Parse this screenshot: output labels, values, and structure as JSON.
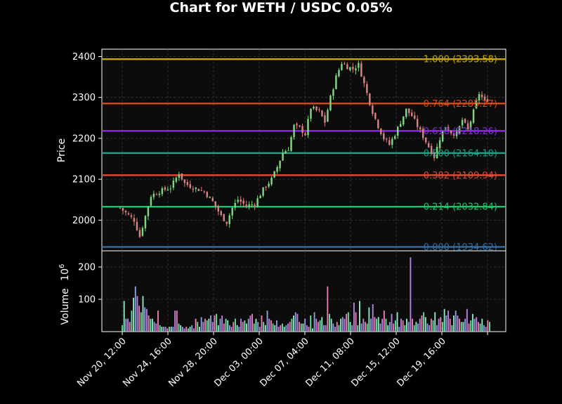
{
  "title": "Chart for WETH / USDC 0.05%",
  "chart_data": {
    "type": "candlestick",
    "price_panel": {
      "ylabel": "Price",
      "ylim": [
        1925,
        2418
      ],
      "yticks": [
        2000,
        2100,
        2200,
        2300,
        2400
      ],
      "grid": true
    },
    "volume_panel": {
      "ylabel": "Volume",
      "ylabel_exponent": "10^6",
      "ylim": [
        0,
        250
      ],
      "yticks": [
        100,
        200
      ],
      "grid": true
    },
    "x_ticks": [
      "Nov 20, 12:00",
      "Nov 24, 16:00",
      "Nov 28, 20:00",
      "Dec 03, 00:00",
      "Dec 07, 04:00",
      "Dec 11, 08:00",
      "Dec 15, 12:00",
      "Dec 19, 16:00"
    ],
    "fib_levels": [
      {
        "ratio": "1.000",
        "price": 2393.58,
        "label": "1.000 (2393.58)",
        "color": "#c8a800"
      },
      {
        "ratio": "0.764",
        "price": 2285.27,
        "label": "0.764 (2285.27)",
        "color": "#d84a1b"
      },
      {
        "ratio": "0.618",
        "price": 2218.26,
        "label": "0.618 (2218.26)",
        "color": "#8a2be2"
      },
      {
        "ratio": "0.500",
        "price": 2164.1,
        "label": "0.500 (2164.10)",
        "color": "#1aa085"
      },
      {
        "ratio": "0.382",
        "price": 2109.94,
        "label": "0.382 (2109.94)",
        "color": "#e04a3a"
      },
      {
        "ratio": "0.214",
        "price": 2032.84,
        "label": "0.214 (2032.84)",
        "color": "#17c46a"
      },
      {
        "ratio": "0.000",
        "price": 1934.62,
        "label": "0.000 (1934.62)",
        "color": "#2f6fa8"
      }
    ],
    "price_anchors": [
      [
        0,
        2030
      ],
      [
        5,
        2000
      ],
      [
        7,
        1960
      ],
      [
        9,
        2010
      ],
      [
        11,
        2060
      ],
      [
        14,
        2070
      ],
      [
        18,
        2080
      ],
      [
        21,
        2115
      ],
      [
        23,
        2090
      ],
      [
        26,
        2080
      ],
      [
        30,
        2070
      ],
      [
        33,
        2045
      ],
      [
        36,
        2010
      ],
      [
        38,
        1995
      ],
      [
        40,
        2030
      ],
      [
        42,
        2050
      ],
      [
        45,
        2035
      ],
      [
        48,
        2040
      ],
      [
        51,
        2075
      ],
      [
        54,
        2100
      ],
      [
        56,
        2130
      ],
      [
        58,
        2165
      ],
      [
        60,
        2175
      ],
      [
        62,
        2230
      ],
      [
        64,
        2225
      ],
      [
        66,
        2210
      ],
      [
        68,
        2275
      ],
      [
        71,
        2265
      ],
      [
        73,
        2240
      ],
      [
        75,
        2300
      ],
      [
        77,
        2350
      ],
      [
        79,
        2385
      ],
      [
        81,
        2375
      ],
      [
        83,
        2370
      ],
      [
        85,
        2380
      ],
      [
        88,
        2310
      ],
      [
        90,
        2265
      ],
      [
        92,
        2230
      ],
      [
        94,
        2200
      ],
      [
        96,
        2185
      ],
      [
        98,
        2210
      ],
      [
        100,
        2240
      ],
      [
        102,
        2270
      ],
      [
        104,
        2255
      ],
      [
        106,
        2230
      ],
      [
        108,
        2205
      ],
      [
        110,
        2180
      ],
      [
        112,
        2155
      ],
      [
        114,
        2200
      ],
      [
        116,
        2230
      ],
      [
        118,
        2215
      ],
      [
        120,
        2210
      ],
      [
        122,
        2245
      ],
      [
        124,
        2220
      ],
      [
        126,
        2265
      ],
      [
        128,
        2310
      ],
      [
        130,
        2290
      ],
      [
        131,
        2295
      ]
    ],
    "volume_values": [
      20,
      95,
      40,
      40,
      30,
      65,
      105,
      140,
      110,
      80,
      60,
      110,
      75,
      70,
      50,
      40,
      40,
      30,
      25,
      65,
      20,
      15,
      15,
      15,
      10,
      15,
      15,
      15,
      65,
      65,
      25,
      20,
      15,
      10,
      15,
      10,
      15,
      20,
      10,
      40,
      30,
      15,
      45,
      30,
      40,
      35,
      40,
      50,
      30,
      50,
      55,
      20,
      40,
      50,
      25,
      40,
      35,
      20,
      15,
      30,
      40,
      20,
      15,
      40,
      30,
      35,
      25,
      40,
      50,
      55,
      25,
      40,
      30,
      15,
      50,
      30,
      20,
      65,
      40,
      35,
      25,
      20,
      35,
      15,
      20,
      25,
      15,
      20,
      25,
      30,
      40,
      50,
      60,
      55,
      30,
      25,
      25,
      40,
      20,
      15,
      50,
      10,
      60,
      40,
      30,
      35,
      45,
      20,
      20,
      140,
      55,
      40,
      25,
      15,
      30,
      20,
      40,
      45,
      40,
      55,
      60,
      30,
      20,
      90,
      60,
      20,
      95,
      25,
      40,
      30,
      25,
      75,
      40,
      85,
      45,
      40,
      45,
      25,
      40,
      65,
      40,
      20,
      30,
      55,
      25,
      35,
      60,
      15,
      40,
      35,
      20,
      40,
      30,
      230,
      40,
      20,
      30,
      25,
      40,
      50,
      60,
      45,
      25,
      20,
      40,
      35,
      60,
      20,
      40,
      45,
      30,
      70,
      50,
      65,
      40,
      20,
      50,
      65,
      50,
      40,
      30,
      30,
      40,
      70,
      25,
      35,
      55,
      40,
      45,
      30,
      25,
      40,
      20,
      15,
      35,
      30
    ]
  }
}
